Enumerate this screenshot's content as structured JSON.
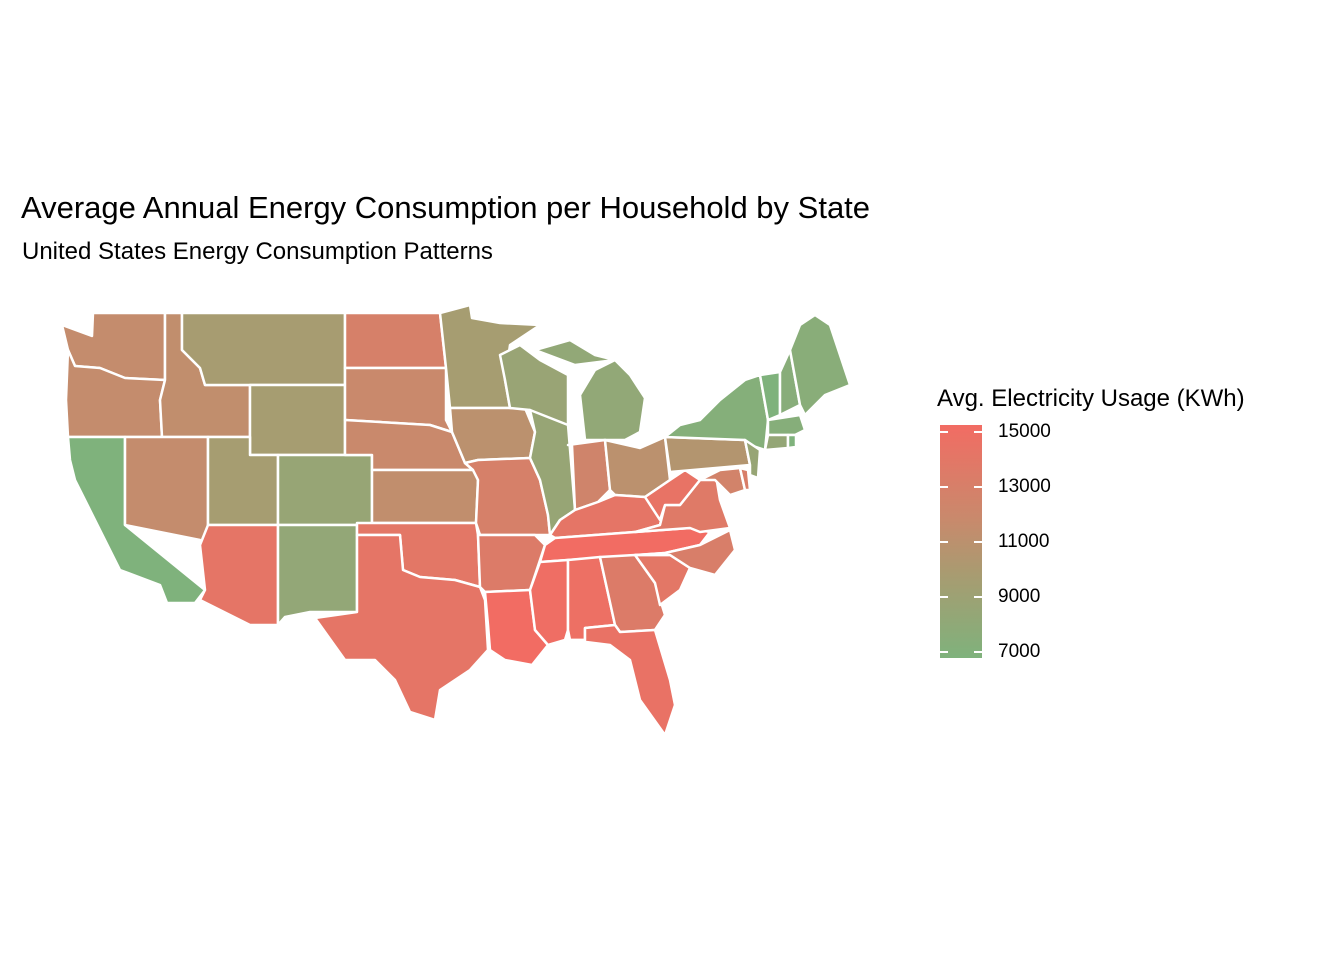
{
  "title": "Average Annual Energy Consumption per Household by State",
  "subtitle": "United States Energy Consumption Patterns",
  "legend": {
    "title": "Avg. Electricity Usage (KWh)",
    "ticks": [
      "15000",
      "13000",
      "11000",
      "9000",
      "7000"
    ]
  },
  "colors": {
    "low": "#7fb27c",
    "mid": "#a79c71",
    "high": "#f26c63",
    "border": "#ffffff"
  },
  "chart_data": {
    "type": "choropleth",
    "scale": {
      "min": 7000,
      "max": 15000
    },
    "states": [
      {
        "name": "Washington",
        "value": 11500
      },
      {
        "name": "Oregon",
        "value": 11500
      },
      {
        "name": "California",
        "value": 6800
      },
      {
        "name": "Idaho",
        "value": 11300
      },
      {
        "name": "Nevada",
        "value": 11500
      },
      {
        "name": "Montana",
        "value": 9800
      },
      {
        "name": "Wyoming",
        "value": 9700
      },
      {
        "name": "Utah",
        "value": 9700
      },
      {
        "name": "Colorado",
        "value": 8700
      },
      {
        "name": "Arizona",
        "value": 14000
      },
      {
        "name": "New Mexico",
        "value": 8400
      },
      {
        "name": "North Dakota",
        "value": 12800
      },
      {
        "name": "South Dakota",
        "value": 11800
      },
      {
        "name": "Nebraska",
        "value": 11800
      },
      {
        "name": "Kansas",
        "value": 11300
      },
      {
        "name": "Oklahoma",
        "value": 13800
      },
      {
        "name": "Texas",
        "value": 14000
      },
      {
        "name": "Minnesota",
        "value": 9700
      },
      {
        "name": "Iowa",
        "value": 11000
      },
      {
        "name": "Missouri",
        "value": 12800
      },
      {
        "name": "Arkansas",
        "value": 13300
      },
      {
        "name": "Louisiana",
        "value": 15400
      },
      {
        "name": "Wisconsin",
        "value": 8800
      },
      {
        "name": "Illinois",
        "value": 8700
      },
      {
        "name": "Michigan",
        "value": 8300
      },
      {
        "name": "Indiana",
        "value": 12300
      },
      {
        "name": "Ohio",
        "value": 11000
      },
      {
        "name": "Kentucky",
        "value": 14000
      },
      {
        "name": "Tennessee",
        "value": 15400
      },
      {
        "name": "Mississippi",
        "value": 14800
      },
      {
        "name": "Alabama",
        "value": 14600
      },
      {
        "name": "Georgia",
        "value": 13300
      },
      {
        "name": "Florida",
        "value": 14300
      },
      {
        "name": "South Carolina",
        "value": 13800
      },
      {
        "name": "North Carolina",
        "value": 13000
      },
      {
        "name": "Virginia",
        "value": 13500
      },
      {
        "name": "West Virginia",
        "value": 14200
      },
      {
        "name": "Pennsylvania",
        "value": 10500
      },
      {
        "name": "New York",
        "value": 7400
      },
      {
        "name": "New Jersey",
        "value": 8700
      },
      {
        "name": "Maryland",
        "value": 12500
      },
      {
        "name": "Delaware",
        "value": 13000
      },
      {
        "name": "Vermont",
        "value": 6900
      },
      {
        "name": "New Hampshire",
        "value": 7600
      },
      {
        "name": "Maine",
        "value": 7700
      },
      {
        "name": "Massachusetts",
        "value": 7500
      },
      {
        "name": "Connecticut",
        "value": 8500
      },
      {
        "name": "Rhode Island",
        "value": 7000
      }
    ]
  }
}
